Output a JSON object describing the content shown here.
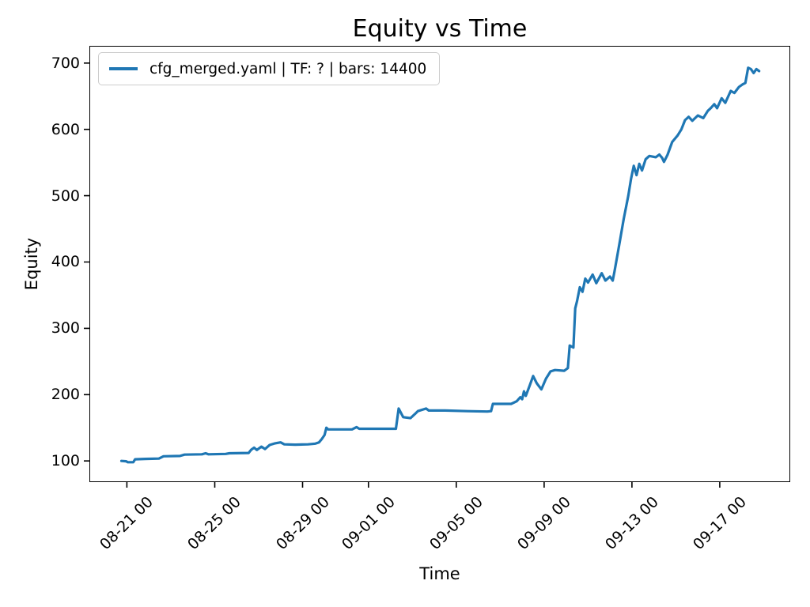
{
  "figure": {
    "title": "Equity vs Time",
    "xlabel": "Time",
    "ylabel": "Equity"
  },
  "colors": {
    "line": "#1f77b4",
    "spine": "#000000",
    "text": "#000000",
    "legend_border": "#cccccc",
    "background": "#ffffff"
  },
  "chart_data": {
    "type": "line",
    "title": "Equity vs Time",
    "xlabel": "Time",
    "ylabel": "Equity",
    "grid": false,
    "legend_position": "upper left",
    "legend_entries": [
      "cfg_merged.yaml | TF: ? | bars: 14400"
    ],
    "x_tick_labels": [
      "08-21 00",
      "08-25 00",
      "08-29 00",
      "09-01 00",
      "09-05 00",
      "09-09 00",
      "09-13 00",
      "09-17 00"
    ],
    "y_ticks": [
      100,
      200,
      300,
      400,
      500,
      600,
      700
    ],
    "xlim": [
      "08-19 07:00",
      "09-20 05:00"
    ],
    "ylim": [
      68,
      726
    ],
    "series": [
      {
        "name": "cfg_merged.yaml | TF: ? | bars: 14400",
        "color": "#1f77b4",
        "points": [
          [
            "08-20 18:00",
            100
          ],
          [
            "08-20 23:00",
            99.5
          ],
          [
            "08-21 01:00",
            98
          ],
          [
            "08-21 07:00",
            98
          ],
          [
            "08-21 09:00",
            102.5
          ],
          [
            "08-21 20:00",
            103
          ],
          [
            "08-22 11:00",
            103.5
          ],
          [
            "08-22 16:00",
            107
          ],
          [
            "08-23 10:00",
            107.5
          ],
          [
            "08-23 15:00",
            109.5
          ],
          [
            "08-24 10:00",
            110
          ],
          [
            "08-24 14:00",
            111.5
          ],
          [
            "08-24 17:00",
            110
          ],
          [
            "08-25 12:00",
            110.5
          ],
          [
            "08-25 16:00",
            111.5
          ],
          [
            "08-26 13:00",
            112
          ],
          [
            "08-26 16:00",
            117
          ],
          [
            "08-26 19:00",
            120
          ],
          [
            "08-26 22:00",
            116.5
          ],
          [
            "08-27 03:00",
            121.5
          ],
          [
            "08-27 07:00",
            118
          ],
          [
            "08-27 12:00",
            124
          ],
          [
            "08-27 18:00",
            126.5
          ],
          [
            "08-28 00:00",
            128
          ],
          [
            "08-28 04:00",
            125
          ],
          [
            "08-28 16:00",
            124.5
          ],
          [
            "08-29 06:00",
            125
          ],
          [
            "08-29 14:00",
            126
          ],
          [
            "08-29 18:00",
            128
          ],
          [
            "08-29 21:00",
            133
          ],
          [
            "08-30 00:00",
            139
          ],
          [
            "08-30 02:00",
            150
          ],
          [
            "08-30 04:00",
            147.5
          ],
          [
            "08-31 06:00",
            147.5
          ],
          [
            "08-31 11:00",
            151
          ],
          [
            "08-31 14:00",
            148.5
          ],
          [
            "09-02 06:00",
            148.5
          ],
          [
            "09-02 09:00",
            179
          ],
          [
            "09-02 14:00",
            166
          ],
          [
            "09-02 22:00",
            164.5
          ],
          [
            "09-03 03:00",
            171
          ],
          [
            "09-03 06:00",
            175
          ],
          [
            "09-03 15:00",
            179
          ],
          [
            "09-03 18:00",
            176
          ],
          [
            "09-04 12:00",
            176
          ],
          [
            "09-05 12:00",
            175
          ],
          [
            "09-06 10:00",
            174.5
          ],
          [
            "09-06 14:00",
            175
          ],
          [
            "09-06 16:00",
            186
          ],
          [
            "09-07 12:00",
            186
          ],
          [
            "09-07 18:00",
            190
          ],
          [
            "09-07 22:00",
            196
          ],
          [
            "09-08 00:00",
            193
          ],
          [
            "09-08 02:00",
            205
          ],
          [
            "09-08 04:00",
            198
          ],
          [
            "09-08 08:00",
            213
          ],
          [
            "09-08 12:00",
            228
          ],
          [
            "09-08 16:00",
            217
          ],
          [
            "09-08 21:00",
            208
          ],
          [
            "09-09 02:00",
            224
          ],
          [
            "09-09 07:00",
            235
          ],
          [
            "09-09 12:00",
            237
          ],
          [
            "09-09 22:00",
            236
          ],
          [
            "09-10 02:00",
            240
          ],
          [
            "09-10 04:00",
            274
          ],
          [
            "09-10 08:00",
            271
          ],
          [
            "09-10 10:00",
            330
          ],
          [
            "09-10 12:00",
            341
          ],
          [
            "09-10 15:00",
            362
          ],
          [
            "09-10 18:00",
            355
          ],
          [
            "09-10 21:00",
            375
          ],
          [
            "09-11 00:00",
            369
          ],
          [
            "09-11 05:00",
            381
          ],
          [
            "09-11 09:00",
            368
          ],
          [
            "09-11 15:00",
            383
          ],
          [
            "09-11 19:00",
            372
          ],
          [
            "09-12 00:00",
            378
          ],
          [
            "09-12 03:00",
            372
          ],
          [
            "09-12 05:00",
            386
          ],
          [
            "09-12 10:00",
            425
          ],
          [
            "09-12 15:00",
            465
          ],
          [
            "09-12 20:00",
            500
          ],
          [
            "09-12 23:00",
            525
          ],
          [
            "09-13 02:00",
            545
          ],
          [
            "09-13 05:00",
            531
          ],
          [
            "09-13 08:00",
            548
          ],
          [
            "09-13 11:00",
            538
          ],
          [
            "09-13 15:00",
            555
          ],
          [
            "09-13 19:00",
            560
          ],
          [
            "09-14 02:00",
            558
          ],
          [
            "09-14 06:00",
            562
          ],
          [
            "09-14 09:00",
            557
          ],
          [
            "09-14 11:00",
            551
          ],
          [
            "09-14 15:00",
            562
          ],
          [
            "09-14 20:00",
            581
          ],
          [
            "09-15 02:00",
            591
          ],
          [
            "09-15 06:00",
            600
          ],
          [
            "09-15 10:00",
            614
          ],
          [
            "09-15 14:00",
            619
          ],
          [
            "09-15 18:00",
            613
          ],
          [
            "09-16 00:00",
            621
          ],
          [
            "09-16 06:00",
            617
          ],
          [
            "09-16 11:00",
            628
          ],
          [
            "09-16 14:00",
            632
          ],
          [
            "09-16 18:00",
            638
          ],
          [
            "09-16 21:00",
            632
          ],
          [
            "09-17 02:00",
            647
          ],
          [
            "09-17 06:00",
            640
          ],
          [
            "09-17 12:00",
            658
          ],
          [
            "09-17 16:00",
            655
          ],
          [
            "09-17 21:00",
            664
          ],
          [
            "09-18 01:00",
            668
          ],
          [
            "09-18 04:00",
            670
          ],
          [
            "09-18 07:00",
            693
          ],
          [
            "09-18 10:00",
            691
          ],
          [
            "09-18 13:00",
            685
          ],
          [
            "09-18 16:00",
            691
          ],
          [
            "09-18 19:00",
            688
          ]
        ]
      }
    ]
  }
}
